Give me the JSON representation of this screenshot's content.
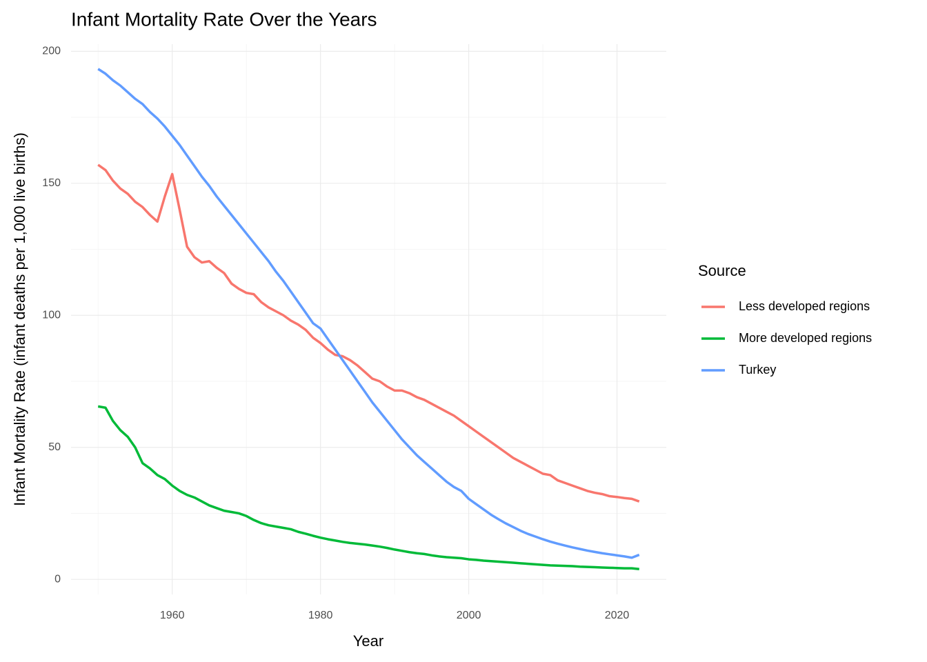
{
  "chart_data": {
    "type": "line",
    "title": "Infant Mortality Rate Over the Years",
    "x_label": "Year",
    "y_label": "Infant Mortality Rate (infant deaths per 1,000 live births)",
    "legend_title": "Source",
    "x": [
      1950,
      1951,
      1952,
      1953,
      1954,
      1955,
      1956,
      1957,
      1958,
      1959,
      1960,
      1961,
      1962,
      1963,
      1964,
      1965,
      1966,
      1967,
      1968,
      1969,
      1970,
      1971,
      1972,
      1973,
      1974,
      1975,
      1976,
      1977,
      1978,
      1979,
      1980,
      1981,
      1982,
      1983,
      1984,
      1985,
      1986,
      1987,
      1988,
      1989,
      1990,
      1991,
      1992,
      1993,
      1994,
      1995,
      1996,
      1997,
      1998,
      1999,
      2000,
      2001,
      2002,
      2003,
      2004,
      2005,
      2006,
      2007,
      2008,
      2009,
      2010,
      2011,
      2012,
      2013,
      2014,
      2015,
      2016,
      2017,
      2018,
      2019,
      2020,
      2021,
      2022,
      2023
    ],
    "series": [
      {
        "name": "Less developed regions",
        "color": "#F8766D",
        "values": [
          157,
          155,
          151,
          148,
          146,
          143,
          141,
          138,
          135.5,
          145,
          153.5,
          140,
          126,
          122,
          120,
          120.5,
          118,
          116,
          112,
          110,
          108.5,
          108,
          105,
          103,
          101.5,
          100,
          98,
          96.5,
          94.5,
          91.5,
          89.5,
          87,
          85,
          84.5,
          83,
          81,
          78.5,
          76,
          75,
          73,
          71.5,
          71.5,
          70.5,
          69,
          68,
          66.5,
          65,
          63.5,
          62,
          60,
          58,
          56,
          54,
          52,
          50,
          48,
          46,
          44.5,
          43,
          41.5,
          40,
          39.5,
          37.5,
          36.5,
          35.5,
          34.5,
          33.5,
          32.8,
          32.3,
          31.5,
          31.2,
          30.8,
          30.5,
          29.5
        ]
      },
      {
        "name": "More developed regions",
        "color": "#00BA38",
        "values": [
          65.5,
          65,
          60,
          56.5,
          54,
          50,
          44,
          42,
          39.5,
          38,
          35.5,
          33.5,
          32,
          31,
          29.5,
          28,
          27,
          26,
          25.5,
          25,
          24,
          22.5,
          21.3,
          20.5,
          20,
          19.5,
          19,
          18,
          17.3,
          16.5,
          15.8,
          15.2,
          14.7,
          14.2,
          13.8,
          13.5,
          13.2,
          12.8,
          12.4,
          11.9,
          11.3,
          10.8,
          10.3,
          9.9,
          9.6,
          9.1,
          8.7,
          8.4,
          8.2,
          8,
          7.6,
          7.4,
          7.1,
          6.9,
          6.7,
          6.5,
          6.3,
          6.1,
          5.9,
          5.7,
          5.5,
          5.3,
          5.2,
          5.1,
          5,
          4.8,
          4.7,
          4.6,
          4.5,
          4.4,
          4.3,
          4.2,
          4.2,
          3.9
        ]
      },
      {
        "name": "Turkey",
        "color": "#619CFF",
        "values": [
          193.3,
          191.5,
          189,
          187,
          184.5,
          182,
          180,
          177,
          174.5,
          171.5,
          168,
          164.5,
          160.5,
          156.5,
          152.5,
          149,
          145,
          141.5,
          138,
          134.5,
          131,
          127.5,
          124,
          120.5,
          116.5,
          113,
          109,
          105,
          101,
          97,
          95,
          91,
          87,
          83,
          79,
          75,
          71,
          67,
          63.5,
          60,
          56.5,
          53,
          50,
          47,
          44.5,
          42,
          39.5,
          37,
          35,
          33.5,
          30.5,
          28.5,
          26.5,
          24.5,
          22.8,
          21.2,
          19.8,
          18.4,
          17.2,
          16.2,
          15.2,
          14.3,
          13.5,
          12.8,
          12.1,
          11.5,
          10.9,
          10.4,
          9.9,
          9.5,
          9.1,
          8.7,
          8.2,
          9.3
        ]
      }
    ],
    "xlim": [
      1946.35,
      2026.65
    ],
    "ylim": [
      -5.7,
      202.7
    ],
    "xticks": [
      1960,
      1980,
      2000,
      2020
    ],
    "yticks": [
      0,
      50,
      100,
      150,
      200
    ],
    "xminor": [
      1950,
      1970,
      1990,
      2010
    ],
    "yminor": [
      25,
      75,
      125,
      175
    ],
    "grid": true,
    "legend": "right"
  }
}
